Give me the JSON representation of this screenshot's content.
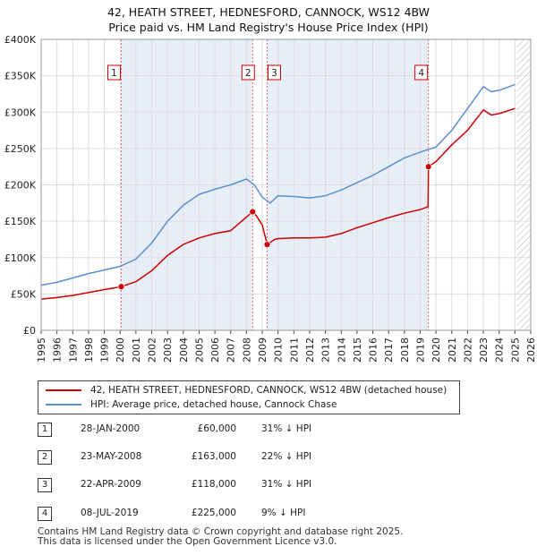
{
  "title_line1": "42, HEATH STREET, HEDNESFORD, CANNOCK, WS12 4BW",
  "title_line2": "Price paid vs. HM Land Registry's House Price Index (HPI)",
  "legend": {
    "property_label": "42, HEATH STREET, HEDNESFORD, CANNOCK, WS12 4BW (detached house)",
    "hpi_label": "HPI: Average price, detached house, Cannock Chase",
    "property_color": "#cc0000",
    "hpi_color": "#5b8fd0"
  },
  "sales": [
    {
      "num": "1",
      "date": "28-JAN-2000",
      "price": "£60,000",
      "delta": "31% ↓ HPI"
    },
    {
      "num": "2",
      "date": "23-MAY-2008",
      "price": "£163,000",
      "delta": "22% ↓ HPI"
    },
    {
      "num": "3",
      "date": "22-APR-2009",
      "price": "£118,000",
      "delta": "31% ↓ HPI"
    },
    {
      "num": "4",
      "date": "08-JUL-2019",
      "price": "£225,000",
      "delta": "9% ↓ HPI"
    }
  ],
  "footer_line1": "Contains HM Land Registry data © Crown copyright and database right 2025.",
  "footer_line2": "This data is licensed under the Open Government Licence v3.0.",
  "chart_data": {
    "type": "line",
    "xlim": [
      1995,
      2026
    ],
    "ylim": [
      0,
      400000
    ],
    "x_ticks": [
      "1995",
      "1996",
      "1997",
      "1998",
      "1999",
      "2000",
      "2001",
      "2002",
      "2003",
      "2004",
      "2005",
      "2006",
      "2007",
      "2008",
      "2009",
      "2010",
      "2011",
      "2012",
      "2013",
      "2014",
      "2015",
      "2016",
      "2017",
      "2018",
      "2019",
      "2020",
      "2021",
      "2022",
      "2023",
      "2024",
      "2025",
      "2026"
    ],
    "y_ticks": [
      {
        "value": 0,
        "label": "£0"
      },
      {
        "value": 50000,
        "label": "£50K"
      },
      {
        "value": 100000,
        "label": "£100K"
      },
      {
        "value": 150000,
        "label": "£150K"
      },
      {
        "value": 200000,
        "label": "£200K"
      },
      {
        "value": 250000,
        "label": "£250K"
      },
      {
        "value": 300000,
        "label": "£300K"
      },
      {
        "value": 350000,
        "label": "£350K"
      },
      {
        "value": 400000,
        "label": "£400K"
      }
    ],
    "grid": true,
    "shaded_periods": [
      {
        "from": 2000.07,
        "to": 2008.39
      },
      {
        "from": 2009.31,
        "to": 2019.52
      }
    ],
    "hatched_from": 2025.1,
    "sale_markers": [
      {
        "label": "1",
        "x": 2000.07,
        "y": 60000
      },
      {
        "label": "2",
        "x": 2008.39,
        "y": 163000
      },
      {
        "label": "3",
        "x": 2009.31,
        "y": 118000
      },
      {
        "label": "4",
        "x": 2019.52,
        "y": 225000
      }
    ],
    "series": [
      {
        "name": "HPI: Average price, detached house, Cannock Chase",
        "color": "#5b8fd0",
        "points": [
          [
            1995,
            62000
          ],
          [
            1996,
            66000
          ],
          [
            1997,
            72000
          ],
          [
            1998,
            78000
          ],
          [
            1999,
            83000
          ],
          [
            2000,
            88000
          ],
          [
            2001,
            98000
          ],
          [
            2002,
            120000
          ],
          [
            2003,
            150000
          ],
          [
            2004,
            172000
          ],
          [
            2005,
            187000
          ],
          [
            2006,
            194000
          ],
          [
            2007,
            200000
          ],
          [
            2008,
            208000
          ],
          [
            2008.5,
            200000
          ],
          [
            2009,
            183000
          ],
          [
            2009.5,
            175000
          ],
          [
            2010,
            185000
          ],
          [
            2011,
            184000
          ],
          [
            2012,
            182000
          ],
          [
            2013,
            185000
          ],
          [
            2014,
            193000
          ],
          [
            2015,
            203000
          ],
          [
            2016,
            213000
          ],
          [
            2017,
            225000
          ],
          [
            2018,
            237000
          ],
          [
            2019,
            245000
          ],
          [
            2020,
            252000
          ],
          [
            2021,
            275000
          ],
          [
            2022,
            305000
          ],
          [
            2023,
            335000
          ],
          [
            2023.5,
            328000
          ],
          [
            2024,
            330000
          ],
          [
            2025,
            338000
          ]
        ]
      },
      {
        "name": "42, HEATH STREET, HEDNESFORD, CANNOCK, WS12 4BW (detached house)",
        "color": "#cc0000",
        "points": [
          [
            1995,
            43000
          ],
          [
            1996,
            45000
          ],
          [
            1997,
            48000
          ],
          [
            1998,
            52000
          ],
          [
            1999,
            56000
          ],
          [
            2000.07,
            60000
          ],
          [
            2001,
            67000
          ],
          [
            2002,
            82000
          ],
          [
            2003,
            103000
          ],
          [
            2004,
            118000
          ],
          [
            2005,
            127000
          ],
          [
            2006,
            133000
          ],
          [
            2007,
            137000
          ],
          [
            2008.39,
            163000
          ],
          [
            2008.6,
            158000
          ],
          [
            2009,
            145000
          ],
          [
            2009.31,
            118000
          ],
          [
            2009.8,
            125000
          ],
          [
            2010,
            126000
          ],
          [
            2011,
            127000
          ],
          [
            2012,
            127000
          ],
          [
            2013,
            128000
          ],
          [
            2014,
            133000
          ],
          [
            2015,
            141000
          ],
          [
            2016,
            148000
          ],
          [
            2017,
            155000
          ],
          [
            2018,
            161000
          ],
          [
            2019,
            166000
          ],
          [
            2019.5,
            170000
          ],
          [
            2019.52,
            225000
          ],
          [
            2020,
            232000
          ],
          [
            2021,
            255000
          ],
          [
            2022,
            275000
          ],
          [
            2023,
            303000
          ],
          [
            2023.5,
            296000
          ],
          [
            2024,
            298000
          ],
          [
            2025,
            305000
          ]
        ]
      }
    ]
  }
}
